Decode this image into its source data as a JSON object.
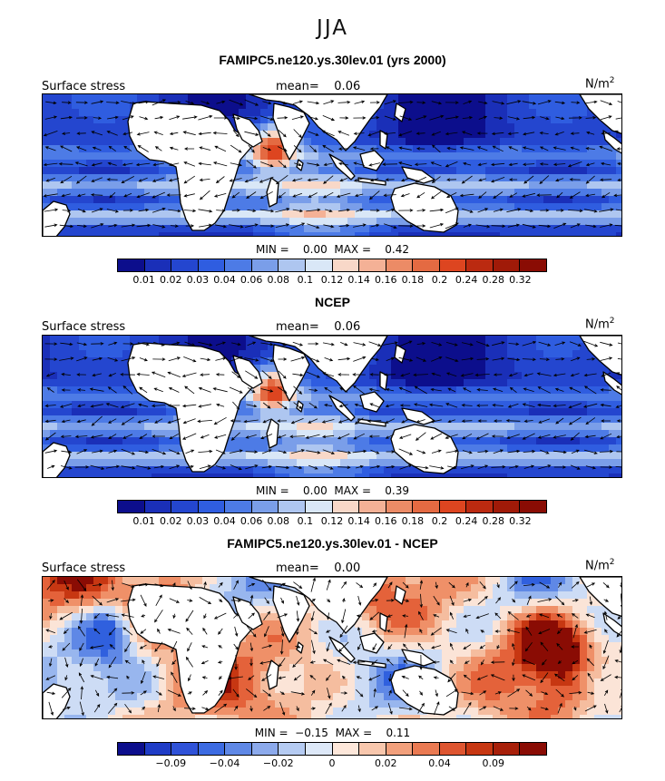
{
  "figure": {
    "season": "JJA"
  },
  "panels": [
    {
      "title": "FAMIPC5.ne120.ys.30lev.01 (yrs 2000)",
      "variable": "Surface stress",
      "mean_text": "mean=    0.06",
      "units": "N/m",
      "units_exp": "2",
      "minmax_text": "MIN =    0.00  MAX =    0.42",
      "colorbar_labels": [
        "0.01",
        "0.02",
        "0.03",
        "0.04",
        "0.06",
        "0.08",
        "0.1",
        "0.12",
        "0.14",
        "0.16",
        "0.18",
        "0.2",
        "0.24",
        "0.28",
        "0.32"
      ],
      "field": "model"
    },
    {
      "title": "NCEP",
      "variable": "Surface stress",
      "mean_text": "mean=    0.06",
      "units": "N/m",
      "units_exp": "2",
      "minmax_text": "MIN =    0.00  MAX =    0.39",
      "colorbar_labels": [
        "0.01",
        "0.02",
        "0.03",
        "0.04",
        "0.06",
        "0.08",
        "0.1",
        "0.12",
        "0.14",
        "0.16",
        "0.18",
        "0.2",
        "0.24",
        "0.28",
        "0.32"
      ],
      "field": "obs"
    },
    {
      "title": "FAMIPC5.ne120.ys.30lev.01 - NCEP",
      "variable": "Surface stress",
      "mean_text": "mean=    0.00",
      "units": "N/m",
      "units_exp": "2",
      "minmax_text": "MIN =  −0.15  MAX =    0.11",
      "colorbar_labels": [
        "−0.09",
        "−0.04",
        "−0.02",
        "0",
        "0.02",
        "0.04",
        "0.09"
      ],
      "field": "diff"
    }
  ],
  "colors": {
    "abs_scale": [
      "#0c0e8c",
      "#1a2fb8",
      "#2446cf",
      "#2f5de0",
      "#4d7be6",
      "#7a9ee9",
      "#aec6f0",
      "#d9e7f7",
      "#f8d8c8",
      "#f4b196",
      "#ec8b66",
      "#e46a42",
      "#dd4520",
      "#bb2a10",
      "#8a0c04"
    ],
    "diff_scale": [
      "#0c0e8c",
      "#1f3cc6",
      "#3060de",
      "#5f88e6",
      "#98b6ee",
      "#cddcf5",
      "#fbe4d7",
      "#f5bd9f",
      "#ef9068",
      "#e4623a",
      "#c73712",
      "#8a0c04"
    ],
    "land": "#ffffff",
    "coast": "#000000"
  }
}
